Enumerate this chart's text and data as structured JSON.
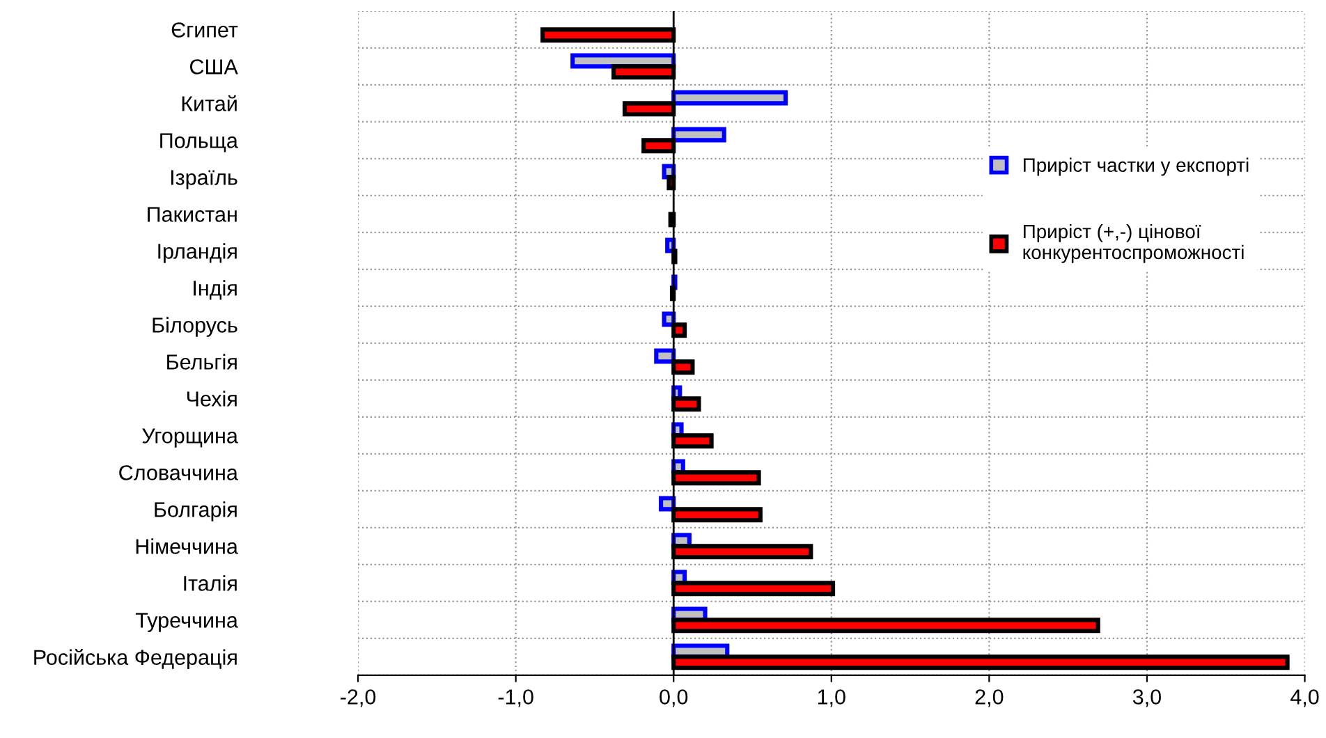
{
  "chart_data": {
    "type": "bar",
    "orientation": "horizontal",
    "categories": [
      "Єгипет",
      "США",
      "Китай",
      "Польща",
      "Ізраїль",
      "Пакистан",
      "Ірландія",
      "Індія",
      "Білорусь",
      "Бельгія",
      "Чехія",
      "Угорщина",
      "Словаччина",
      "Болгарія",
      "Німеччина",
      "Італія",
      "Туреччина",
      "Російська Федерація"
    ],
    "series": [
      {
        "name": "Приріст частки у експорті",
        "color": "#c0c0c0",
        "values": [
          null,
          -0.64,
          0.71,
          0.32,
          -0.06,
          null,
          -0.04,
          0.01,
          -0.06,
          -0.11,
          0.04,
          0.05,
          0.06,
          -0.08,
          0.1,
          0.07,
          0.2,
          0.34
        ]
      },
      {
        "name": "Приріст (+,-) цінової\nконкурентоспроможності",
        "color": "#ff0000",
        "values": [
          -0.83,
          -0.38,
          -0.31,
          -0.19,
          -0.03,
          -0.02,
          0.01,
          -0.01,
          0.07,
          0.12,
          0.16,
          0.24,
          0.54,
          0.55,
          0.87,
          1.01,
          2.69,
          3.89
        ]
      }
    ],
    "xlim": [
      -2.0,
      4.0
    ],
    "xticks": [
      {
        "value": -2.0,
        "label": "-2,0"
      },
      {
        "value": -1.0,
        "label": "-1,0"
      },
      {
        "value": 0.0,
        "label": "0,0"
      },
      {
        "value": 1.0,
        "label": "1,0"
      },
      {
        "value": 2.0,
        "label": "2,0"
      },
      {
        "value": 3.0,
        "label": "3,0"
      },
      {
        "value": 4.0,
        "label": "4,0"
      }
    ],
    "grid": true,
    "legend": "right"
  }
}
